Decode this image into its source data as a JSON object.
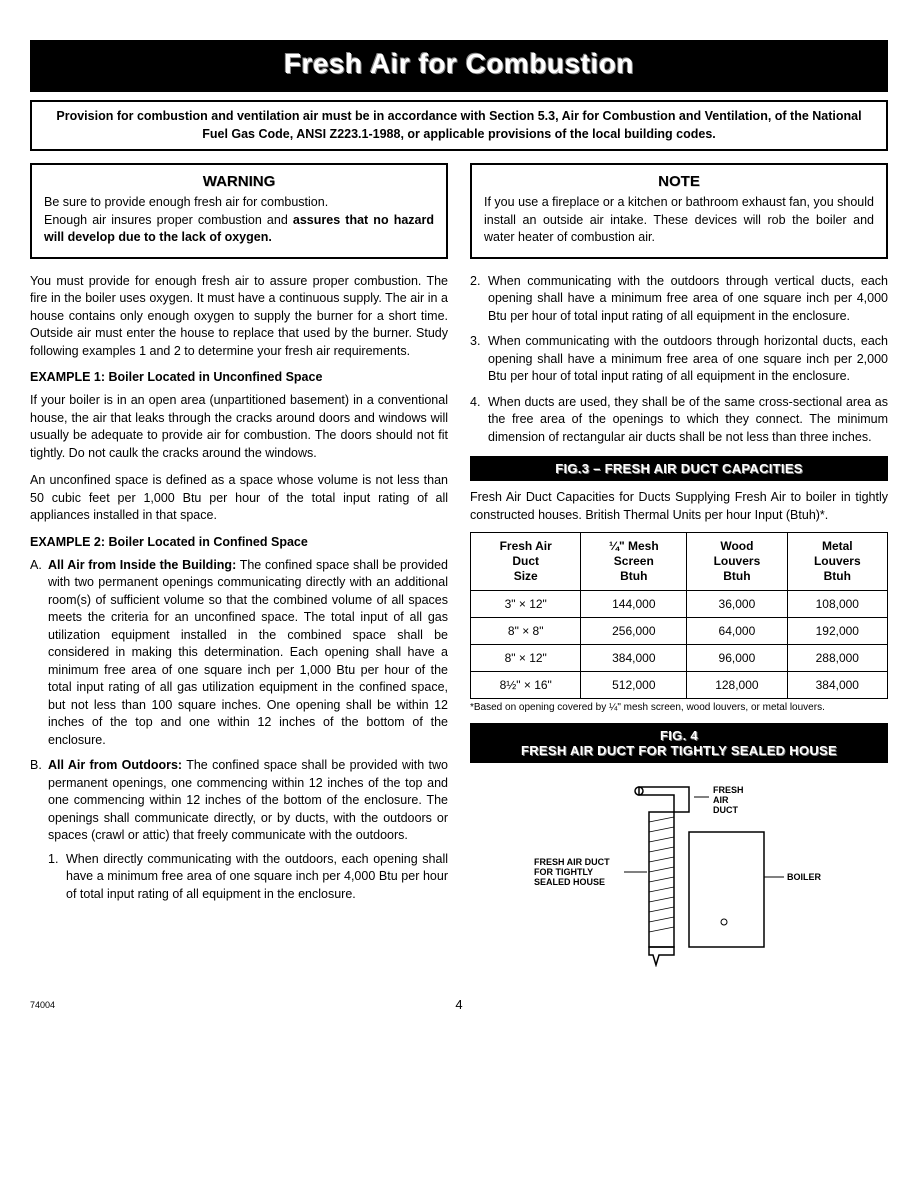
{
  "header": "Fresh Air for Combustion",
  "provision": "Provision for combustion and ventilation air must be in accordance with Section 5.3, Air for Combustion and Ventilation, of the National Fuel Gas Code, ANSI Z223.1-1988, or applicable provisions of the local building codes.",
  "warning": {
    "title": "WARNING",
    "line1": "Be sure to provide enough fresh air for combustion.",
    "line2a": "Enough air insures proper combustion and ",
    "line2b": "assures that no hazard will develop due to the lack of oxygen."
  },
  "note": {
    "title": "NOTE",
    "body": "If you use a fireplace or a kitchen or bathroom exhaust fan, you should install an outside air intake. These devices will rob the boiler and water heater of combustion air."
  },
  "intro": "You must provide for enough fresh air to assure proper combustion. The fire in the boiler uses oxygen. It must have a continuous supply. The air in a house contains only enough oxygen to supply the burner for a short time. Outside air must enter the house to replace that used by the burner. Study following examples 1 and 2 to determine your fresh air requirements.",
  "ex1_heading": "EXAMPLE 1: Boiler Located in Unconfined Space",
  "ex1_p1": "If your boiler is in an open area (unpartitioned basement) in a conventional house, the air that leaks through the cracks around doors and windows will usually be adequate to provide air for combustion. The doors should not fit tightly. Do not caulk the cracks around the windows.",
  "ex1_p2": "An unconfined space is defined as a space whose volume is not less than 50 cubic feet per 1,000 Btu per hour of the total input rating of all appliances installed in that space.",
  "ex2_heading": "EXAMPLE 2: Boiler Located in Confined Space",
  "ex2_a_label": "A.",
  "ex2_a_lead": "All Air from Inside the Building:",
  "ex2_a_body": " The confined space shall be provided with two permanent openings communicating directly with an additional room(s) of sufficient volume so that the combined volume of all spaces meets the criteria for an unconfined space. The total input of all gas utilization equipment installed in the combined space shall be considered in making this determination. Each opening shall have a minimum free area of one square inch per 1,000 Btu per hour of the total input rating of all gas utilization equipment in the confined space, but not less than 100 square inches. One opening shall be within 12 inches of the top and one within 12 inches of the bottom of the enclosure.",
  "ex2_b_label": "B.",
  "ex2_b_lead": "All Air from Outdoors:",
  "ex2_b_body": " The confined space shall be provided with two permanent openings, one commencing within 12 inches of the top and one commencing within 12 inches of the bottom of the enclosure. The openings shall communicate directly, or by ducts, with the outdoors or spaces (crawl or attic) that freely communicate with the outdoors.",
  "ex2_b1": "When directly communicating with the outdoors, each opening shall have a minimum free area of one square inch per 4,000 Btu per hour of total input rating of all equipment in the enclosure.",
  "ex2_b2": "When communicating with the outdoors through vertical ducts, each opening shall have a minimum free area of one square inch per 4,000 Btu per hour of total input rating of all equipment in the enclosure.",
  "ex2_b3": "When communicating with the outdoors through horizontal ducts, each opening shall have a minimum free area of one square inch per 2,000 Btu per hour of total input rating of all equipment in the enclosure.",
  "ex2_b4": "When ducts are used, they shall be of the same cross-sectional area as the free area of the openings to which they connect. The minimum dimension of rectangular air ducts shall be not less than three inches.",
  "fig3_title": "FIG.3 – FRESH AIR DUCT CAPACITIES",
  "fig3_caption": "Fresh Air Duct Capacities for Ducts Supplying Fresh Air to boiler in tightly constructed houses. British Thermal Units per hour Input (Btuh)*.",
  "table": {
    "headers": [
      "Fresh Air\nDuct\nSize",
      "¼\" Mesh\nScreen\nBtuh",
      "Wood\nLouvers\nBtuh",
      "Metal\nLouvers\nBtuh"
    ],
    "rows": [
      [
        "3\" × 12\"",
        "144,000",
        "36,000",
        "108,000"
      ],
      [
        "8\" ×  8\"",
        "256,000",
        "64,000",
        "192,000"
      ],
      [
        "8\" × 12\"",
        "384,000",
        "96,000",
        "288,000"
      ],
      [
        "8½\" × 16\"",
        "512,000",
        "128,000",
        "384,000"
      ]
    ]
  },
  "table_footnote": "*Based on opening covered by ¼\" mesh screen, wood louvers, or metal louvers.",
  "fig4_title1": "FIG. 4",
  "fig4_title2": "FRESH AIR DUCT FOR TIGHTLY SEALED HOUSE",
  "diagram_labels": {
    "fresh_air_duct": "FRESH\nAIR\nDUCT",
    "caption": "FRESH AIR DUCT\nFOR TIGHTLY\nSEALED HOUSE",
    "boiler": "BOILER"
  },
  "page_number": "4",
  "doc_code": "74004"
}
